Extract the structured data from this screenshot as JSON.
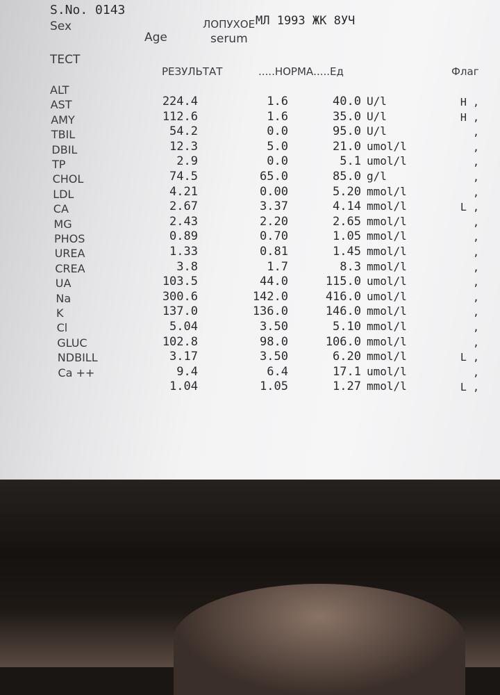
{
  "header": {
    "sample_no": "S.No. 0143",
    "sex_label": "Sex",
    "patient": "ЛОПУХОЕ",
    "patient_info": "МЛ 1993 ЖК 8УЧ",
    "age_label": "Age",
    "sample_type": "serum"
  },
  "columns": {
    "test": "ТЕСТ",
    "result": "РЕЗУЛЬТАТ",
    "norm": ".....НОРМА.....Ед",
    "flag": "Флаг"
  },
  "rows": [
    {
      "test": "ALT",
      "result": "224.4",
      "low": "1.6",
      "high": "40.0",
      "unit": "U/l",
      "flag": "H ,"
    },
    {
      "test": "AST",
      "result": "112.6",
      "low": "1.6",
      "high": "35.0",
      "unit": "U/l",
      "flag": "H ,"
    },
    {
      "test": "AMY",
      "result": "54.2",
      "low": "0.0",
      "high": "95.0",
      "unit": "U/l",
      "flag": ","
    },
    {
      "test": "TBIL",
      "result": "12.3",
      "low": "5.0",
      "high": "21.0",
      "unit": "umol/l",
      "flag": ","
    },
    {
      "test": "DBIL",
      "result": "2.9",
      "low": "0.0",
      "high": "5.1",
      "unit": "umol/l",
      "flag": ","
    },
    {
      "test": "TP",
      "result": "74.5",
      "low": "65.0",
      "high": "85.0",
      "unit": "g/l",
      "flag": ","
    },
    {
      "test": "CHOL",
      "result": "4.21",
      "low": "0.00",
      "high": "5.20",
      "unit": "mmol/l",
      "flag": ","
    },
    {
      "test": "LDL",
      "result": "2.67",
      "low": "3.37",
      "high": "4.14",
      "unit": "mmol/l",
      "flag": "L ,"
    },
    {
      "test": "CA",
      "result": "2.43",
      "low": "2.20",
      "high": "2.65",
      "unit": "mmol/l",
      "flag": ","
    },
    {
      "test": "MG",
      "result": "0.89",
      "low": "0.70",
      "high": "1.05",
      "unit": "mmol/l",
      "flag": ","
    },
    {
      "test": "PHOS",
      "result": "1.33",
      "low": "0.81",
      "high": "1.45",
      "unit": "mmol/l",
      "flag": ","
    },
    {
      "test": "UREA",
      "result": "3.8",
      "low": "1.7",
      "high": "8.3",
      "unit": "mmol/l",
      "flag": ","
    },
    {
      "test": "CREA",
      "result": "103.5",
      "low": "44.0",
      "high": "115.0",
      "unit": "umol/l",
      "flag": ","
    },
    {
      "test": "UA",
      "result": "300.6",
      "low": "142.0",
      "high": "416.0",
      "unit": "umol/l",
      "flag": ","
    },
    {
      "test": "Na",
      "result": "137.0",
      "low": "136.0",
      "high": "146.0",
      "unit": "mmol/l",
      "flag": ","
    },
    {
      "test": "K",
      "result": "5.04",
      "low": "3.50",
      "high": "5.10",
      "unit": "mmol/l",
      "flag": ","
    },
    {
      "test": "Cl",
      "result": "102.8",
      "low": "98.0",
      "high": "106.0",
      "unit": "mmol/l",
      "flag": ","
    },
    {
      "test": "GLUC",
      "result": "3.17",
      "low": "3.50",
      "high": "6.20",
      "unit": "mmol/l",
      "flag": "L ,"
    },
    {
      "test": "NDBILL",
      "result": "9.4",
      "low": "6.4",
      "high": "17.1",
      "unit": "umol/l",
      "flag": ","
    },
    {
      "test": "Ca ++",
      "result": "1.04",
      "low": "1.05",
      "high": "1.27",
      "unit": "mmol/l",
      "flag": "L ,"
    }
  ]
}
